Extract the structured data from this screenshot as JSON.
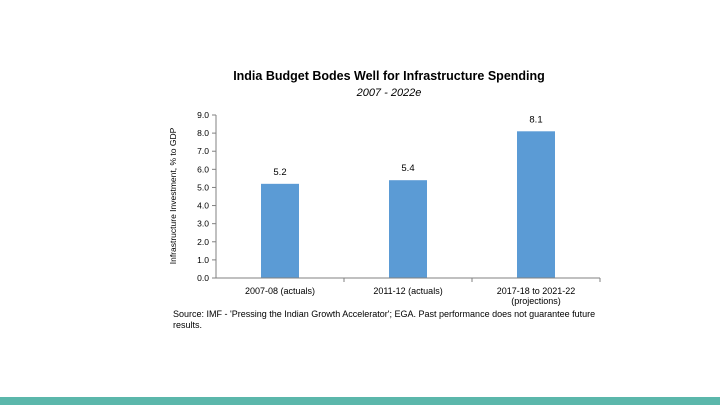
{
  "colors": {
    "bar": "#5b9bd5",
    "footer_bar": "#5bb7ab",
    "axis": "#808080"
  },
  "chart_data": {
    "type": "bar",
    "title": "India Budget Bodes Well for Infrastructure Spending",
    "subtitle": "2007 - 2022e",
    "xlabel": "",
    "ylabel": "Infrastructure Investment, % to GDP",
    "categories": [
      "2007-08 (actuals)",
      "2011-12 (actuals)",
      "2017-18 to 2021-22 (projections)"
    ],
    "category_lines": [
      [
        "2007-08 (actuals)"
      ],
      [
        "2011-12 (actuals)"
      ],
      [
        "2017-18 to 2021-22",
        "(projections)"
      ]
    ],
    "values": [
      5.2,
      5.4,
      8.1
    ],
    "value_labels": [
      "5.2",
      "5.4",
      "8.1"
    ],
    "ylim": [
      0,
      9
    ],
    "yticks": [
      "0.0",
      "1.0",
      "2.0",
      "3.0",
      "4.0",
      "5.0",
      "6.0",
      "7.0",
      "8.0",
      "9.0"
    ],
    "grid": false,
    "legend": "none"
  },
  "source": "Source: IMF - 'Pressing the Indian Growth Accelerator'; EGA. Past performance does not guarantee future results."
}
